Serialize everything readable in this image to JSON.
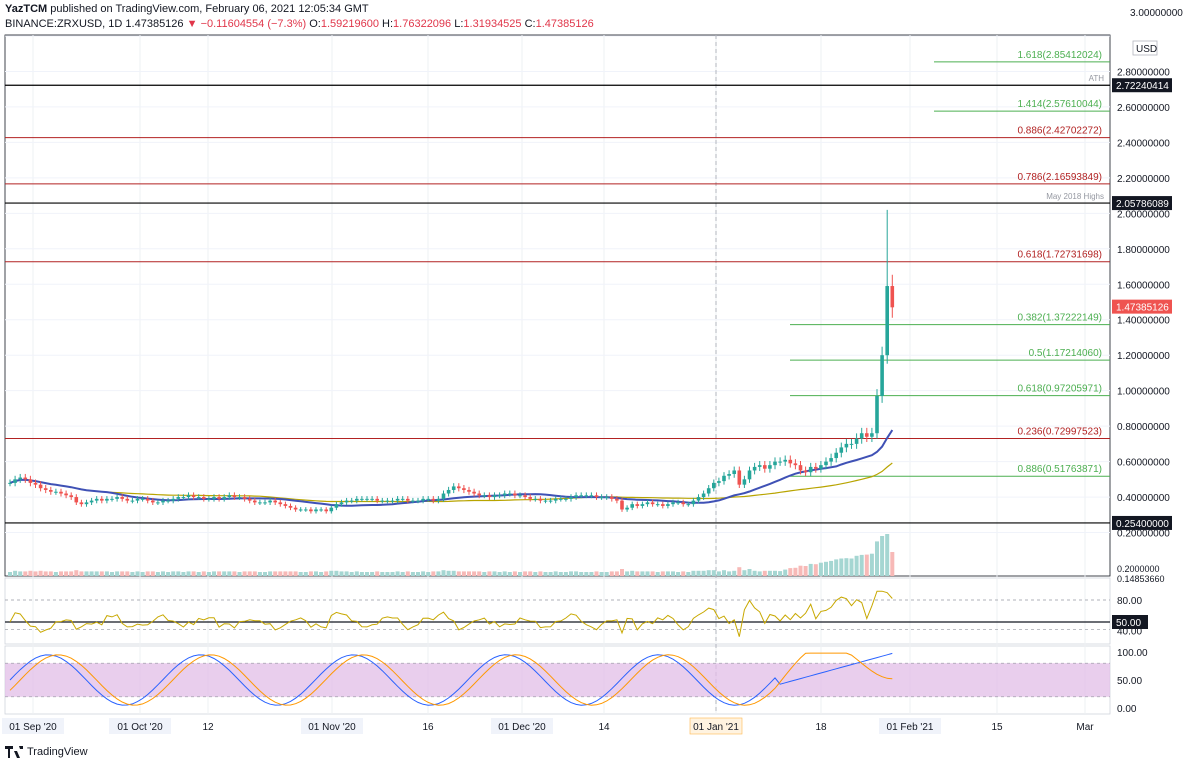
{
  "header": {
    "user": "YazTCM",
    "published": "published on TradingView.com, February 06, 2021 12:05:34 GMT",
    "symbol": "BINANCE:ZRXUSD, 1D",
    "last": "1.47385126",
    "change": "−0.11604554 (−7.3%)",
    "o_label": "O:",
    "o": "1.59219600",
    "h_label": "H:",
    "h": "1.76322096",
    "l_label": "L:",
    "l": "1.31934525",
    "c_label": "C:",
    "c": "1.47385126"
  },
  "footer": {
    "brand": "TradingView"
  },
  "colors": {
    "up": "#26a69a",
    "down": "#ef5350",
    "red_line": "#b22222",
    "green_line": "#4caf50",
    "ma_blue": "#3f51b5",
    "ma_olive": "#b8a400",
    "rsi": "#c8a800",
    "stoch_k": "#2962ff",
    "stoch_d": "#ff9800",
    "stoch_band": "#e1bee7"
  },
  "chart_data": [
    {
      "type": "candlestick",
      "currency": "USD",
      "yticks": [
        "3.00000000",
        "2.80000000",
        "2.60000000",
        "2.40000000",
        "2.20000000",
        "2.00000000",
        "1.80000000",
        "1.60000000",
        "1.40000000",
        "1.20000000",
        "1.00000000",
        "0.80000000",
        "0.60000000",
        "0.40000000",
        "0.20000000"
      ],
      "ylim": [
        0.0,
        3.0
      ],
      "xticks": [
        "01 Sep '20",
        "01 Oct '20",
        "12",
        "01 Nov '20",
        "16",
        "01 Dec '20",
        "14",
        "2021",
        "18",
        "01 Feb '21",
        "15",
        "Mar"
      ],
      "x_highlight": [
        "01 Jan '21"
      ],
      "fib_levels": [
        {
          "label": "1.618(2.85412024)",
          "value": 2.85412024,
          "color": "green",
          "range": "short"
        },
        {
          "label": "1.414(2.57610044)",
          "value": 2.57610044,
          "color": "green",
          "range": "short"
        },
        {
          "label": "0.886(2.42702272)",
          "value": 2.42702272,
          "color": "red",
          "range": "full"
        },
        {
          "label": "0.786(2.16593849)",
          "value": 2.16593849,
          "color": "red",
          "range": "full"
        },
        {
          "label": "0.618(1.72731698)",
          "value": 1.72731698,
          "color": "red",
          "range": "full"
        },
        {
          "label": "0.382(1.37222149)",
          "value": 1.37222149,
          "color": "green",
          "range": "mid"
        },
        {
          "label": "0.5(1.17214060)",
          "value": 1.1721406,
          "color": "green",
          "range": "mid"
        },
        {
          "label": "0.618(0.97205971)",
          "value": 0.97205971,
          "color": "green",
          "range": "mid"
        },
        {
          "label": "0.236(0.72997523)",
          "value": 0.72997523,
          "color": "red",
          "range": "full"
        },
        {
          "label": "0.886(0.51763871)",
          "value": 0.51763871,
          "color": "green",
          "range": "mid"
        }
      ],
      "black_levels": [
        {
          "value": 2.72240414,
          "label": "2.72240414",
          "note": "ATH"
        },
        {
          "value": 2.05786089,
          "label": "2.05786089",
          "note": "May 2018 Highs"
        },
        {
          "value": 0.254,
          "label": "0.25400000",
          "note": ""
        }
      ],
      "current_price": {
        "value": 1.47385126,
        "label": "1.47385126"
      },
      "partial_labels": [
        "0.2000000",
        "0.14853660"
      ],
      "close": [
        0.48,
        0.5,
        0.51,
        0.5,
        0.48,
        0.47,
        0.45,
        0.44,
        0.43,
        0.43,
        0.42,
        0.41,
        0.4,
        0.37,
        0.36,
        0.37,
        0.38,
        0.39,
        0.38,
        0.39,
        0.39,
        0.4,
        0.39,
        0.38,
        0.38,
        0.39,
        0.39,
        0.38,
        0.37,
        0.37,
        0.38,
        0.38,
        0.39,
        0.4,
        0.4,
        0.41,
        0.4,
        0.4,
        0.39,
        0.39,
        0.4,
        0.39,
        0.4,
        0.41,
        0.4,
        0.4,
        0.39,
        0.38,
        0.37,
        0.37,
        0.37,
        0.38,
        0.37,
        0.36,
        0.35,
        0.34,
        0.33,
        0.33,
        0.33,
        0.32,
        0.33,
        0.33,
        0.32,
        0.34,
        0.36,
        0.37,
        0.38,
        0.38,
        0.39,
        0.39,
        0.39,
        0.39,
        0.38,
        0.38,
        0.38,
        0.38,
        0.39,
        0.39,
        0.38,
        0.38,
        0.38,
        0.39,
        0.39,
        0.38,
        0.39,
        0.42,
        0.44,
        0.46,
        0.45,
        0.44,
        0.43,
        0.42,
        0.41,
        0.41,
        0.4,
        0.41,
        0.41,
        0.42,
        0.42,
        0.41,
        0.41,
        0.4,
        0.39,
        0.39,
        0.38,
        0.38,
        0.38,
        0.39,
        0.39,
        0.39,
        0.4,
        0.41,
        0.41,
        0.41,
        0.41,
        0.4,
        0.4,
        0.4,
        0.39,
        0.38,
        0.33,
        0.34,
        0.36,
        0.35,
        0.36,
        0.37,
        0.36,
        0.36,
        0.35,
        0.36,
        0.37,
        0.37,
        0.36,
        0.36,
        0.38,
        0.4,
        0.42,
        0.45,
        0.48,
        0.49,
        0.52,
        0.53,
        0.55,
        0.47,
        0.5,
        0.55,
        0.57,
        0.58,
        0.56,
        0.58,
        0.6,
        0.6,
        0.61,
        0.59,
        0.58,
        0.55,
        0.54,
        0.57,
        0.56,
        0.58,
        0.6,
        0.62,
        0.65,
        0.68,
        0.7,
        0.7,
        0.73,
        0.76,
        0.74,
        0.76,
        0.97,
        1.2,
        1.59,
        1.47
      ],
      "rsi": {
        "levels": [
          80,
          50,
          40
        ],
        "ticks": [
          "80.00",
          "50.00",
          "40.00"
        ]
      },
      "stoch": {
        "ticks": [
          "100.00",
          "50.00",
          "0.00"
        ],
        "band": [
          20,
          80
        ]
      }
    }
  ]
}
